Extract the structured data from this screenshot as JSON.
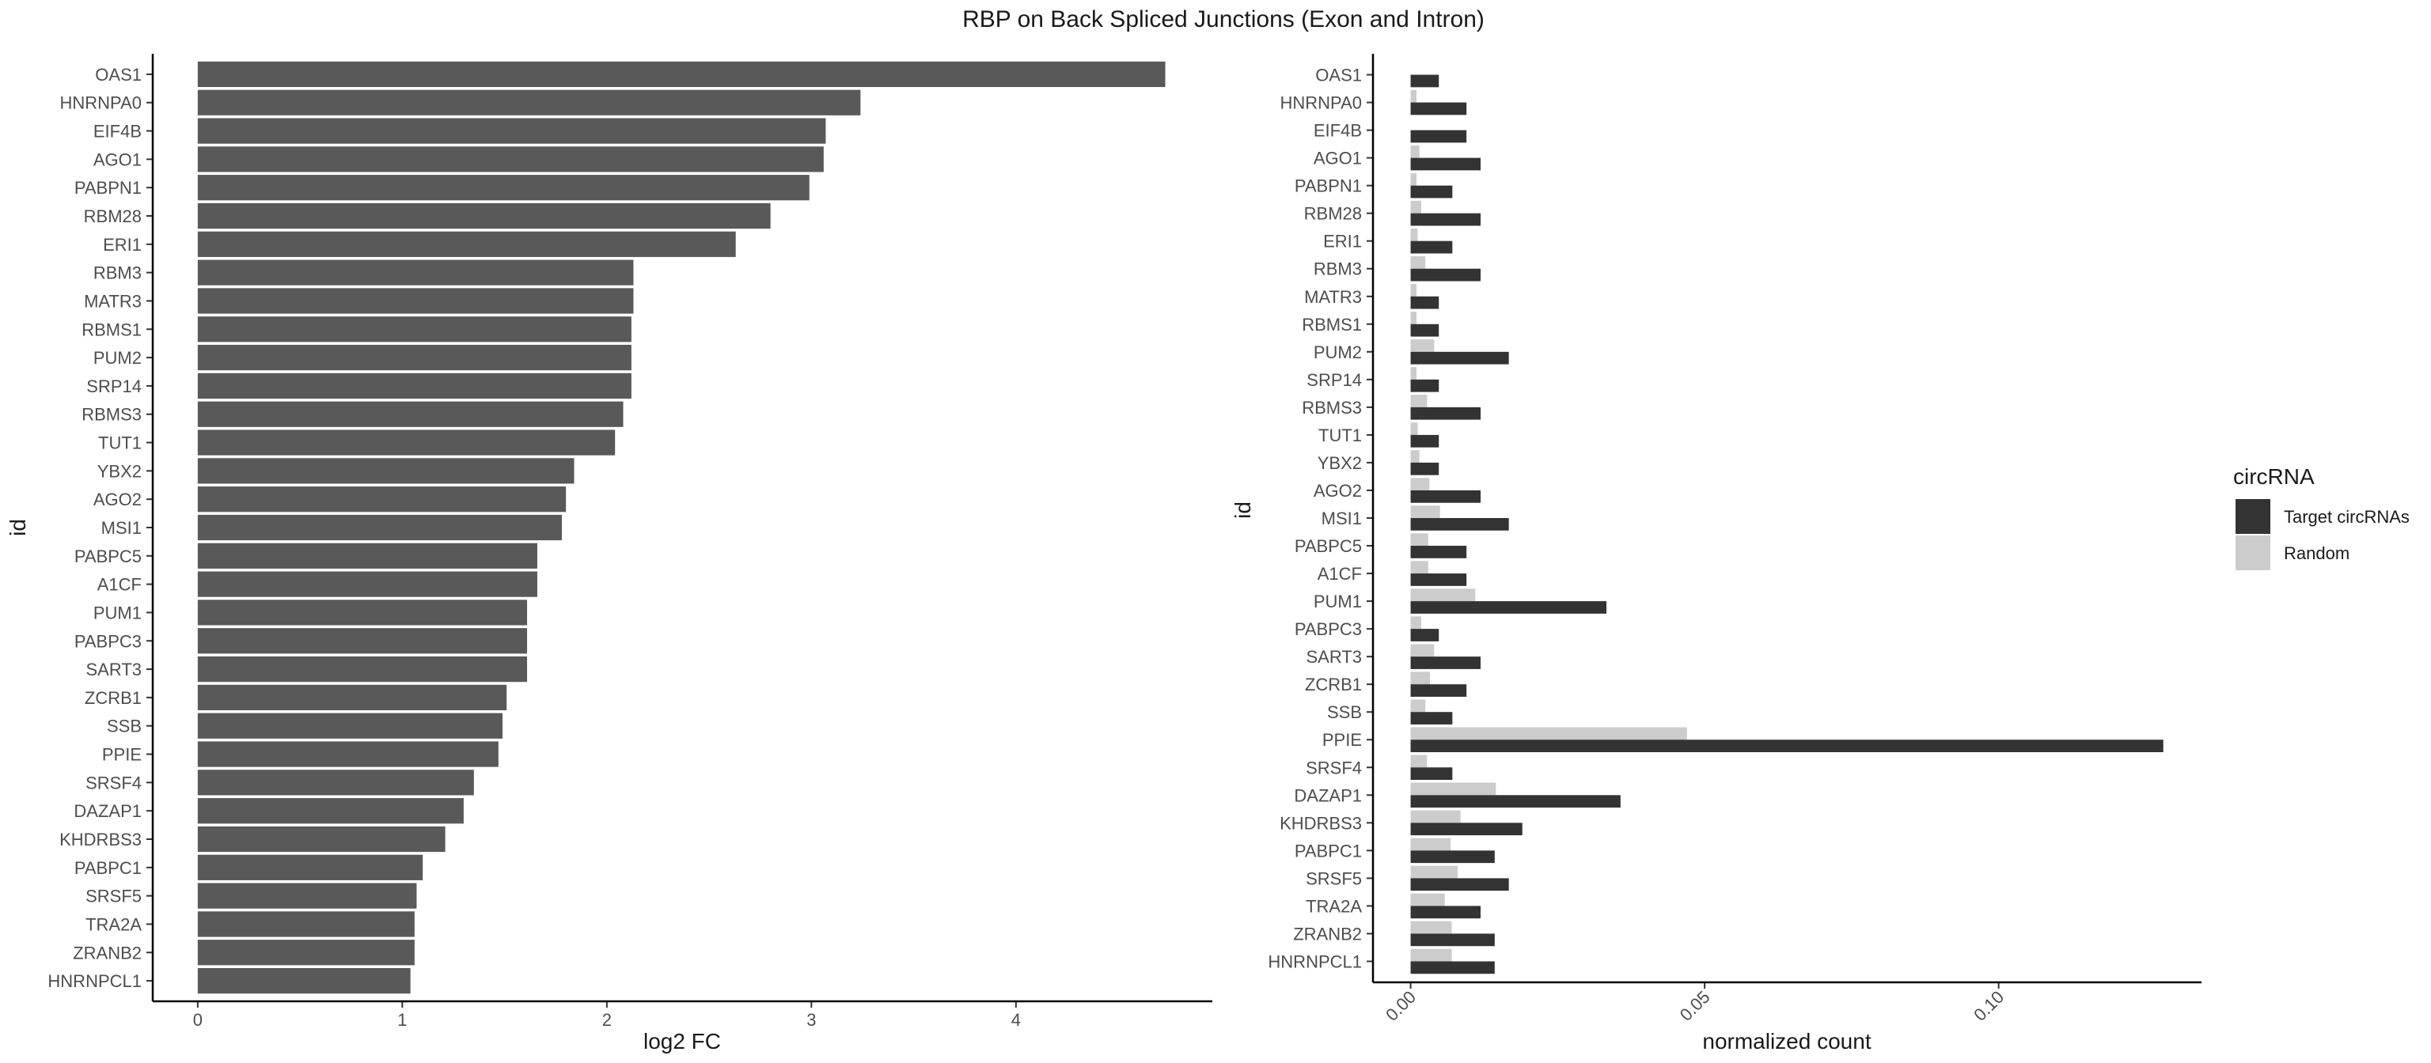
{
  "figure_title": "RBP on Back Spliced Junctions (Exon and Intron)",
  "colors": {
    "left_bar": "#595959",
    "target": "#333333",
    "random": "#cccccc",
    "axis": "#000000",
    "tick_text": "#4d4d4d"
  },
  "chart_data": [
    {
      "type": "bar",
      "orientation": "horizontal",
      "categories": [
        "OAS1",
        "HNRNPA0",
        "EIF4B",
        "AGO1",
        "PABPN1",
        "RBM28",
        "ERI1",
        "RBM3",
        "MATR3",
        "RBMS1",
        "PUM2",
        "SRP14",
        "RBMS3",
        "TUT1",
        "YBX2",
        "AGO2",
        "MSI1",
        "PABPC5",
        "A1CF",
        "PUM1",
        "PABPC3",
        "SART3",
        "ZCRB1",
        "SSB",
        "PPIE",
        "SRSF4",
        "DAZAP1",
        "KHDRBS3",
        "PABPC1",
        "SRSF5",
        "TRA2A",
        "ZRANB2",
        "HNRNPCL1"
      ],
      "values": [
        4.73,
        3.24,
        3.07,
        3.06,
        2.99,
        2.8,
        2.63,
        2.13,
        2.13,
        2.12,
        2.12,
        2.12,
        2.08,
        2.04,
        1.84,
        1.8,
        1.78,
        1.66,
        1.66,
        1.61,
        1.61,
        1.61,
        1.51,
        1.49,
        1.47,
        1.35,
        1.3,
        1.21,
        1.1,
        1.07,
        1.06,
        1.06,
        1.04
      ],
      "xlabel": "log2 FC",
      "ylabel": "id",
      "xlim": [
        -0.22,
        4.96
      ],
      "xticks": [
        0,
        1,
        2,
        3,
        4
      ],
      "grid": false
    },
    {
      "type": "bar",
      "orientation": "horizontal",
      "grouped": true,
      "categories": [
        "OAS1",
        "HNRNPA0",
        "EIF4B",
        "AGO1",
        "PABPN1",
        "RBM28",
        "ERI1",
        "RBM3",
        "MATR3",
        "RBMS1",
        "PUM2",
        "SRP14",
        "RBMS3",
        "TUT1",
        "YBX2",
        "AGO2",
        "MSI1",
        "PABPC5",
        "A1CF",
        "PUM1",
        "PABPC3",
        "SART3",
        "ZCRB1",
        "SSB",
        "PPIE",
        "SRSF4",
        "DAZAP1",
        "KHDRBS3",
        "PABPC1",
        "SRSF5",
        "TRA2A",
        "ZRANB2",
        "HNRNPCL1"
      ],
      "series": [
        {
          "name": "Target circRNAs",
          "values": [
            0.0048,
            0.0095,
            0.0095,
            0.0119,
            0.0071,
            0.0119,
            0.0071,
            0.0119,
            0.0048,
            0.0048,
            0.0167,
            0.0048,
            0.0119,
            0.0048,
            0.0048,
            0.0119,
            0.0167,
            0.0095,
            0.0095,
            0.0333,
            0.0048,
            0.0119,
            0.0095,
            0.0071,
            0.128,
            0.0071,
            0.0357,
            0.019,
            0.0143,
            0.0167,
            0.0119,
            0.0143,
            0.0143
          ]
        },
        {
          "name": "Random",
          "values": [
            0.0,
            0.001,
            0.0,
            0.0015,
            0.001,
            0.0018,
            0.0012,
            0.0025,
            0.001,
            0.001,
            0.004,
            0.001,
            0.0028,
            0.0012,
            0.0015,
            0.0032,
            0.005,
            0.003,
            0.003,
            0.011,
            0.0018,
            0.004,
            0.0033,
            0.0025,
            0.047,
            0.0028,
            0.0145,
            0.0085,
            0.0068,
            0.008,
            0.0058,
            0.007,
            0.007
          ]
        }
      ],
      "xlabel": "normalized count",
      "ylabel": "id",
      "xlim": [
        -0.0064,
        0.1345
      ],
      "xtick_values": [
        0.0,
        0.05,
        0.1
      ],
      "xtick_labels": [
        "0.00",
        "0.05",
        "0.10"
      ],
      "grid": false,
      "legend": {
        "title": "circRNA",
        "position": "right",
        "items": [
          "Target circRNAs",
          "Random"
        ]
      }
    }
  ]
}
